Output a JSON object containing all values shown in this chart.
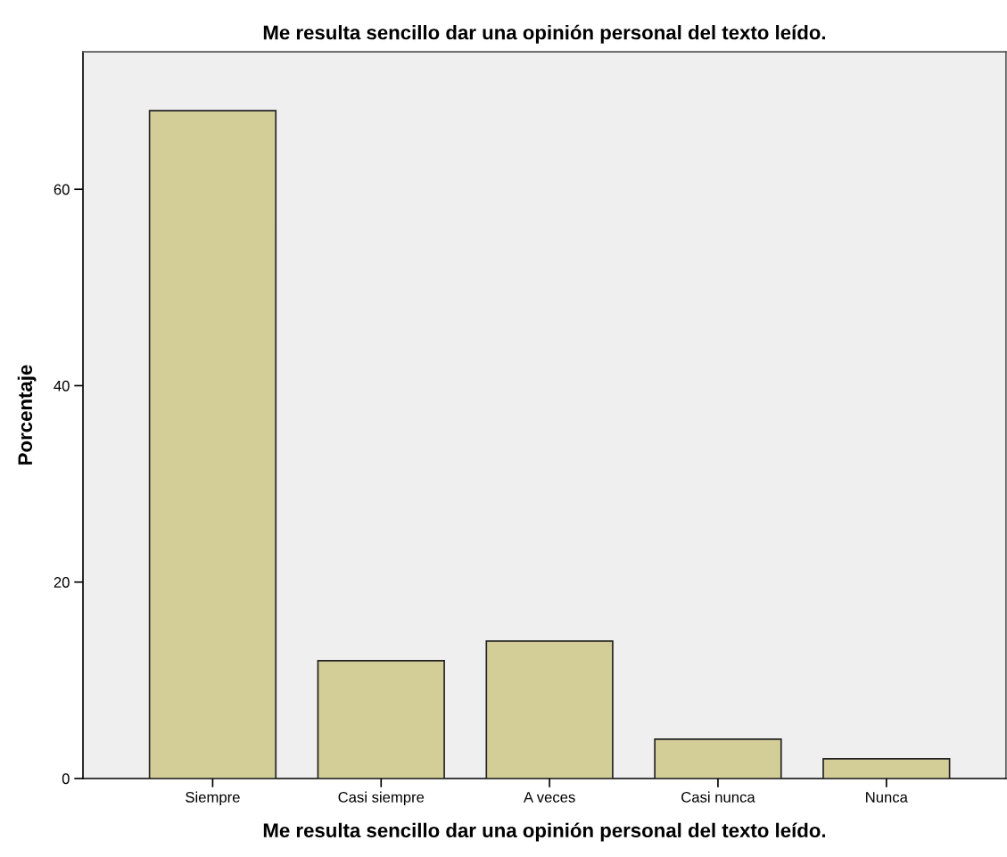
{
  "chart_data": {
    "type": "bar",
    "title": "Me resulta sencillo dar una opinión personal del texto leído.",
    "xlabel": "Me resulta sencillo dar una opinión personal del texto leído.",
    "ylabel": "Porcentaje",
    "categories": [
      "Siempre",
      "Casi siempre",
      "A veces",
      "Casi nunca",
      "Nunca"
    ],
    "values": [
      68,
      12,
      14,
      4,
      2
    ],
    "color": "#d3ce97",
    "ylim": [
      0,
      74
    ],
    "yticks": [
      0,
      20,
      40,
      60
    ],
    "grid": false
  }
}
